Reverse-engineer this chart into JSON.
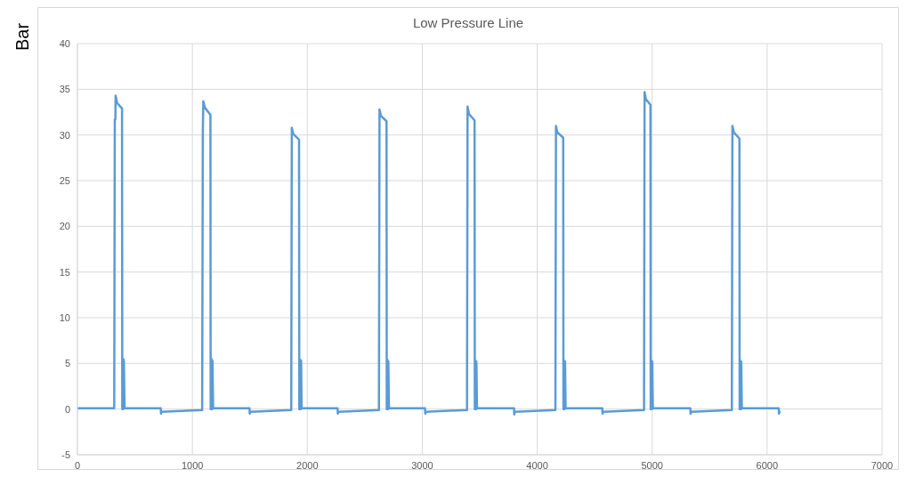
{
  "chart_data": {
    "type": "line",
    "title": "Low Pressure Line",
    "ylabel": "Bar",
    "x": [
      0,
      320,
      325,
      330,
      332,
      345,
      388,
      390,
      396,
      398,
      404,
      410,
      725,
      727,
      732,
      1085,
      1091,
      1095,
      1108,
      1157,
      1159,
      1164,
      1166,
      1172,
      1175,
      1180,
      1497,
      1499,
      1504,
      1860,
      1865,
      1878,
      1928,
      1930,
      1936,
      1938,
      1943,
      1946,
      1950,
      2263,
      2265,
      2270,
      2623,
      2628,
      2640,
      2689,
      2691,
      2695,
      2697,
      2702,
      2705,
      2710,
      3024,
      3026,
      3031,
      3389,
      3394,
      3406,
      3455,
      3457,
      3461,
      3463,
      3468,
      3471,
      3476,
      3798,
      3800,
      3805,
      4158,
      4163,
      4175,
      4226,
      4228,
      4232,
      4234,
      4239,
      4242,
      4247,
      4566,
      4568,
      4573,
      4929,
      4934,
      4946,
      4985,
      4987,
      4991,
      4993,
      4998,
      5001,
      5006,
      5332,
      5334,
      5339,
      5693,
      5698,
      5710,
      5759,
      5761,
      5765,
      5767,
      5772,
      5775,
      5780,
      6101,
      6103,
      6110
    ],
    "series": [
      {
        "color": "#5b9bd5",
        "values": [
          0.1,
          0.1,
          31.7,
          31.7,
          34.3,
          33.5,
          32.9,
          0,
          0,
          5.5,
          5.3,
          0.1,
          0.1,
          -0.5,
          -0.3,
          -0.1,
          30.5,
          33.7,
          33,
          32.2,
          0,
          0,
          5.5,
          0,
          5.3,
          0.1,
          0.1,
          -0.5,
          -0.3,
          -0.1,
          30.8,
          30.1,
          29.5,
          0,
          0,
          5.4,
          0,
          5.3,
          0.1,
          0.1,
          -0.5,
          -0.3,
          -0.1,
          32.8,
          32.1,
          31.5,
          0,
          0,
          5.4,
          0,
          5.2,
          0.1,
          0.1,
          -0.5,
          -0.3,
          -0.1,
          33.1,
          32.3,
          31.6,
          0,
          0,
          5.3,
          0,
          5.2,
          0.1,
          0.1,
          -0.6,
          -0.3,
          -0.1,
          31,
          30.3,
          29.7,
          0,
          0,
          5.3,
          0,
          5.2,
          0.1,
          0.1,
          -0.5,
          -0.3,
          -0.1,
          34.7,
          33.9,
          33.3,
          0,
          0,
          5.3,
          0,
          5.2,
          0.1,
          0.1,
          -0.5,
          -0.3,
          -0.1,
          31,
          30.3,
          29.6,
          0,
          0,
          5.3,
          0,
          5.2,
          0.1,
          0.1,
          -0.5,
          -0.2
        ]
      }
    ],
    "xlim": [
      0,
      7000
    ],
    "xticks": [
      0,
      1000,
      2000,
      3000,
      4000,
      5000,
      6000,
      7000
    ],
    "ylim": [
      -5,
      40
    ],
    "yticks": [
      -5,
      0,
      5,
      10,
      15,
      20,
      25,
      30,
      35,
      40
    ],
    "grid": true,
    "legend": false,
    "marker": "none",
    "line_style": "solid"
  }
}
